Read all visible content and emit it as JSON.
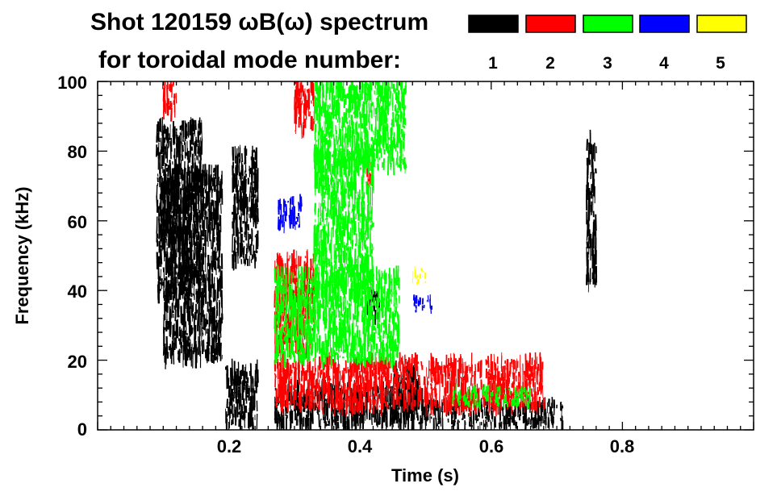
{
  "chart_data": {
    "type": "spectrogram",
    "title_line1": "Shot 120159 ωB(ω) spectrum",
    "title_line2": "for toroidal mode number:",
    "xlabel": "Time (s)",
    "ylabel": "Frequency (kHz)",
    "xlim": [
      0.0,
      1.0
    ],
    "ylim": [
      0,
      100
    ],
    "x_ticks": [
      {
        "value": 0.2,
        "label": "0.2"
      },
      {
        "value": 0.4,
        "label": "0.4"
      },
      {
        "value": 0.6,
        "label": "0.6"
      },
      {
        "value": 0.8,
        "label": "0.8"
      }
    ],
    "y_ticks": [
      {
        "value": 0,
        "label": "0"
      },
      {
        "value": 20,
        "label": "20"
      },
      {
        "value": 40,
        "label": "40"
      },
      {
        "value": 60,
        "label": "60"
      },
      {
        "value": 80,
        "label": "80"
      },
      {
        "value": 100,
        "label": "100"
      }
    ],
    "legend": [
      {
        "mode": "1",
        "color": "#000000"
      },
      {
        "mode": "2",
        "color": "#ff0000"
      },
      {
        "mode": "3",
        "color": "#00ff00"
      },
      {
        "mode": "4",
        "color": "#0000ff"
      },
      {
        "mode": "5",
        "color": "#ffff00"
      }
    ],
    "regions": [
      {
        "mode": 1,
        "t": [
          0.09,
          0.16
        ],
        "f": [
          38,
          88
        ]
      },
      {
        "mode": 1,
        "t": [
          0.1,
          0.19
        ],
        "f": [
          20,
          75
        ]
      },
      {
        "mode": 1,
        "t": [
          0.195,
          0.245
        ],
        "f": [
          1,
          18
        ]
      },
      {
        "mode": 1,
        "t": [
          0.205,
          0.245
        ],
        "f": [
          48,
          80
        ]
      },
      {
        "mode": 1,
        "t": [
          0.27,
          0.5
        ],
        "f": [
          1,
          12
        ]
      },
      {
        "mode": 1,
        "t": [
          0.45,
          0.49
        ],
        "f": [
          5,
          18
        ]
      },
      {
        "mode": 1,
        "t": [
          0.41,
          0.43
        ],
        "f": [
          32,
          40
        ]
      },
      {
        "mode": 1,
        "t": [
          0.5,
          0.71
        ],
        "f": [
          1,
          8
        ]
      },
      {
        "mode": 1,
        "t": [
          0.745,
          0.76
        ],
        "f": [
          42,
          85
        ]
      },
      {
        "mode": 2,
        "t": [
          0.27,
          0.33
        ],
        "f": [
          22,
          50
        ]
      },
      {
        "mode": 2,
        "t": [
          0.3,
          0.33
        ],
        "f": [
          85,
          100
        ]
      },
      {
        "mode": 2,
        "t": [
          0.41,
          0.42
        ],
        "f": [
          70,
          78
        ]
      },
      {
        "mode": 2,
        "t": [
          0.27,
          0.68
        ],
        "f": [
          6,
          20
        ]
      },
      {
        "mode": 2,
        "t": [
          0.1,
          0.12
        ],
        "f": [
          90,
          100
        ]
      },
      {
        "mode": 3,
        "t": [
          0.33,
          0.42
        ],
        "f": [
          40,
          80
        ]
      },
      {
        "mode": 3,
        "t": [
          0.33,
          0.47
        ],
        "f": [
          75,
          100
        ]
      },
      {
        "mode": 3,
        "t": [
          0.27,
          0.46
        ],
        "f": [
          20,
          45
        ]
      },
      {
        "mode": 3,
        "t": [
          0.54,
          0.66
        ],
        "f": [
          7,
          12
        ]
      },
      {
        "mode": 4,
        "t": [
          0.275,
          0.31
        ],
        "f": [
          58,
          66
        ]
      },
      {
        "mode": 4,
        "t": [
          0.48,
          0.51
        ],
        "f": [
          34,
          38
        ]
      },
      {
        "mode": 5,
        "t": [
          0.48,
          0.5
        ],
        "f": [
          42,
          46
        ]
      }
    ]
  }
}
